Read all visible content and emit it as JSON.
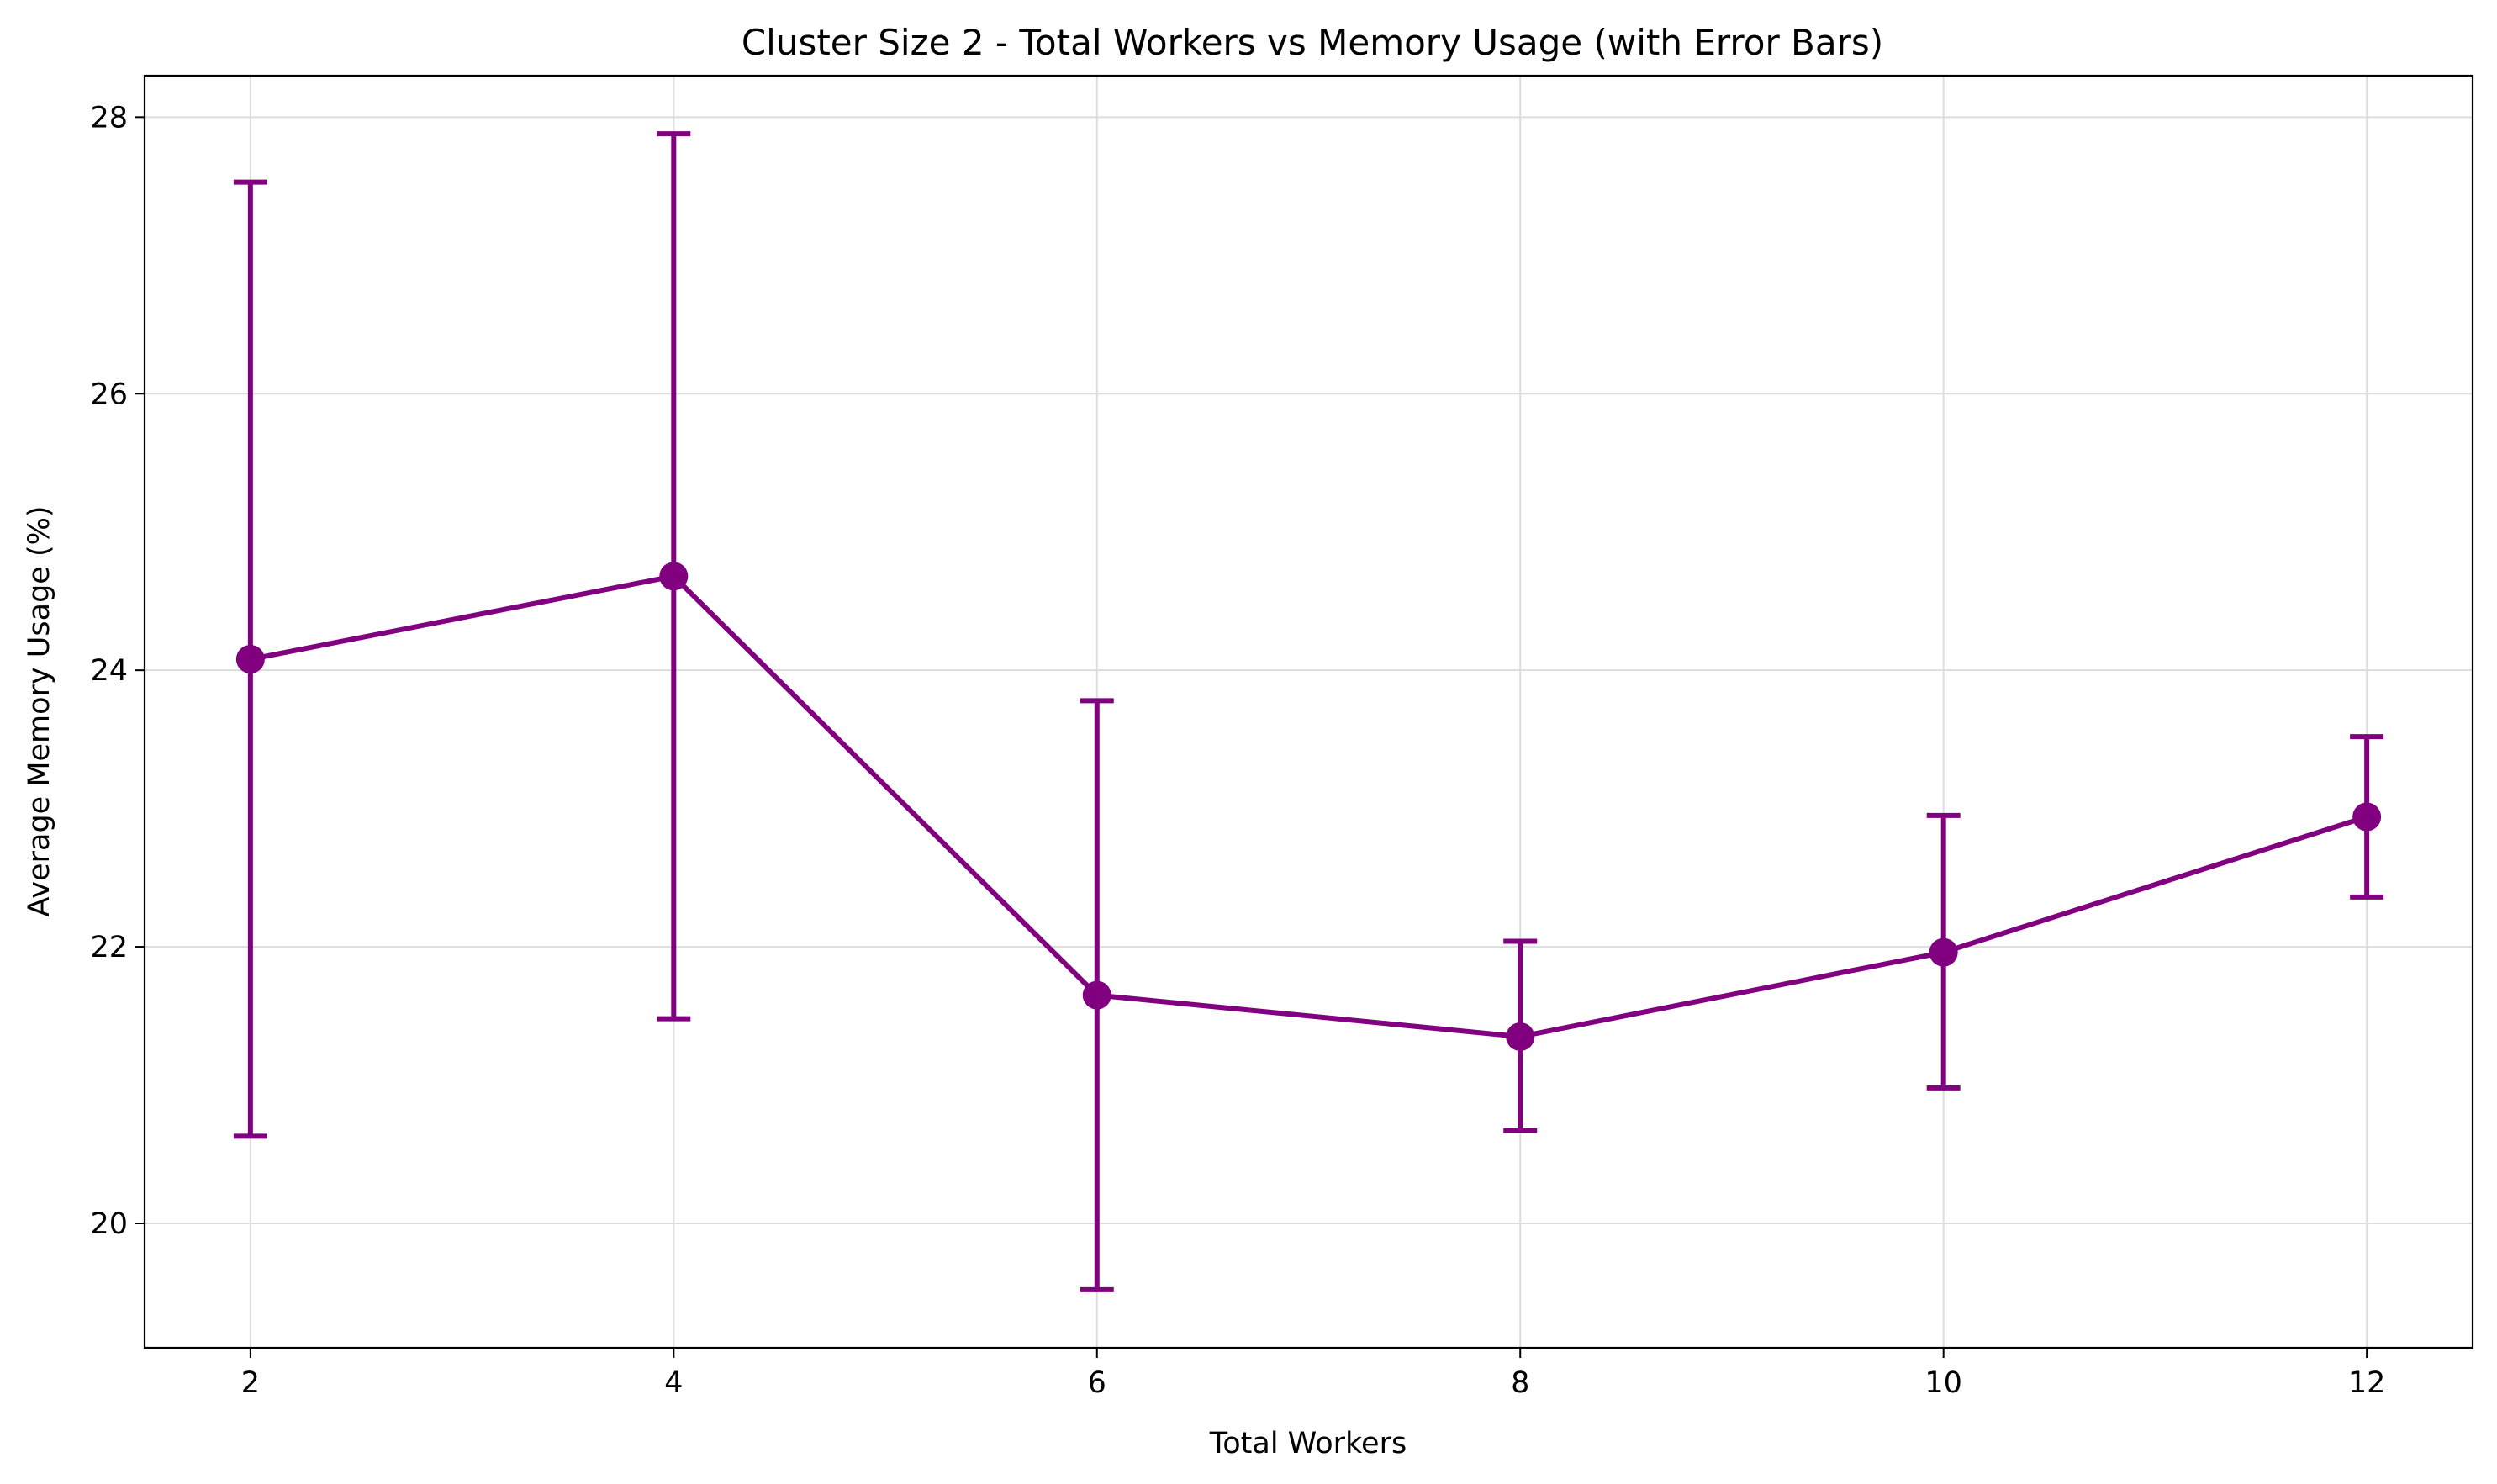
{
  "chart_data": {
    "type": "line",
    "title": "Cluster Size 2 - Total Workers vs Memory Usage (with Error Bars)",
    "xlabel": "Total Workers",
    "ylabel": "Average Memory Usage (%)",
    "x": [
      2,
      4,
      6,
      8,
      10,
      12
    ],
    "series": [
      {
        "values": [
          24.08,
          24.68,
          21.65,
          21.35,
          21.96,
          22.94
        ],
        "error_upper": [
          27.53,
          27.88,
          23.78,
          22.04,
          22.95,
          23.52
        ],
        "error_lower": [
          20.63,
          21.48,
          19.52,
          20.67,
          20.98,
          22.36
        ],
        "color": "#800080",
        "marker": "circle"
      }
    ],
    "xlim": [
      1.5,
      12.5
    ],
    "ylim": [
      19.1,
      28.3
    ],
    "xticks": [
      "2",
      "4",
      "6",
      "8",
      "10",
      "12"
    ],
    "yticks": [
      "20",
      "22",
      "24",
      "26",
      "28"
    ],
    "grid": true,
    "grid_color": "#dddddd",
    "frame_color": "#000000"
  }
}
